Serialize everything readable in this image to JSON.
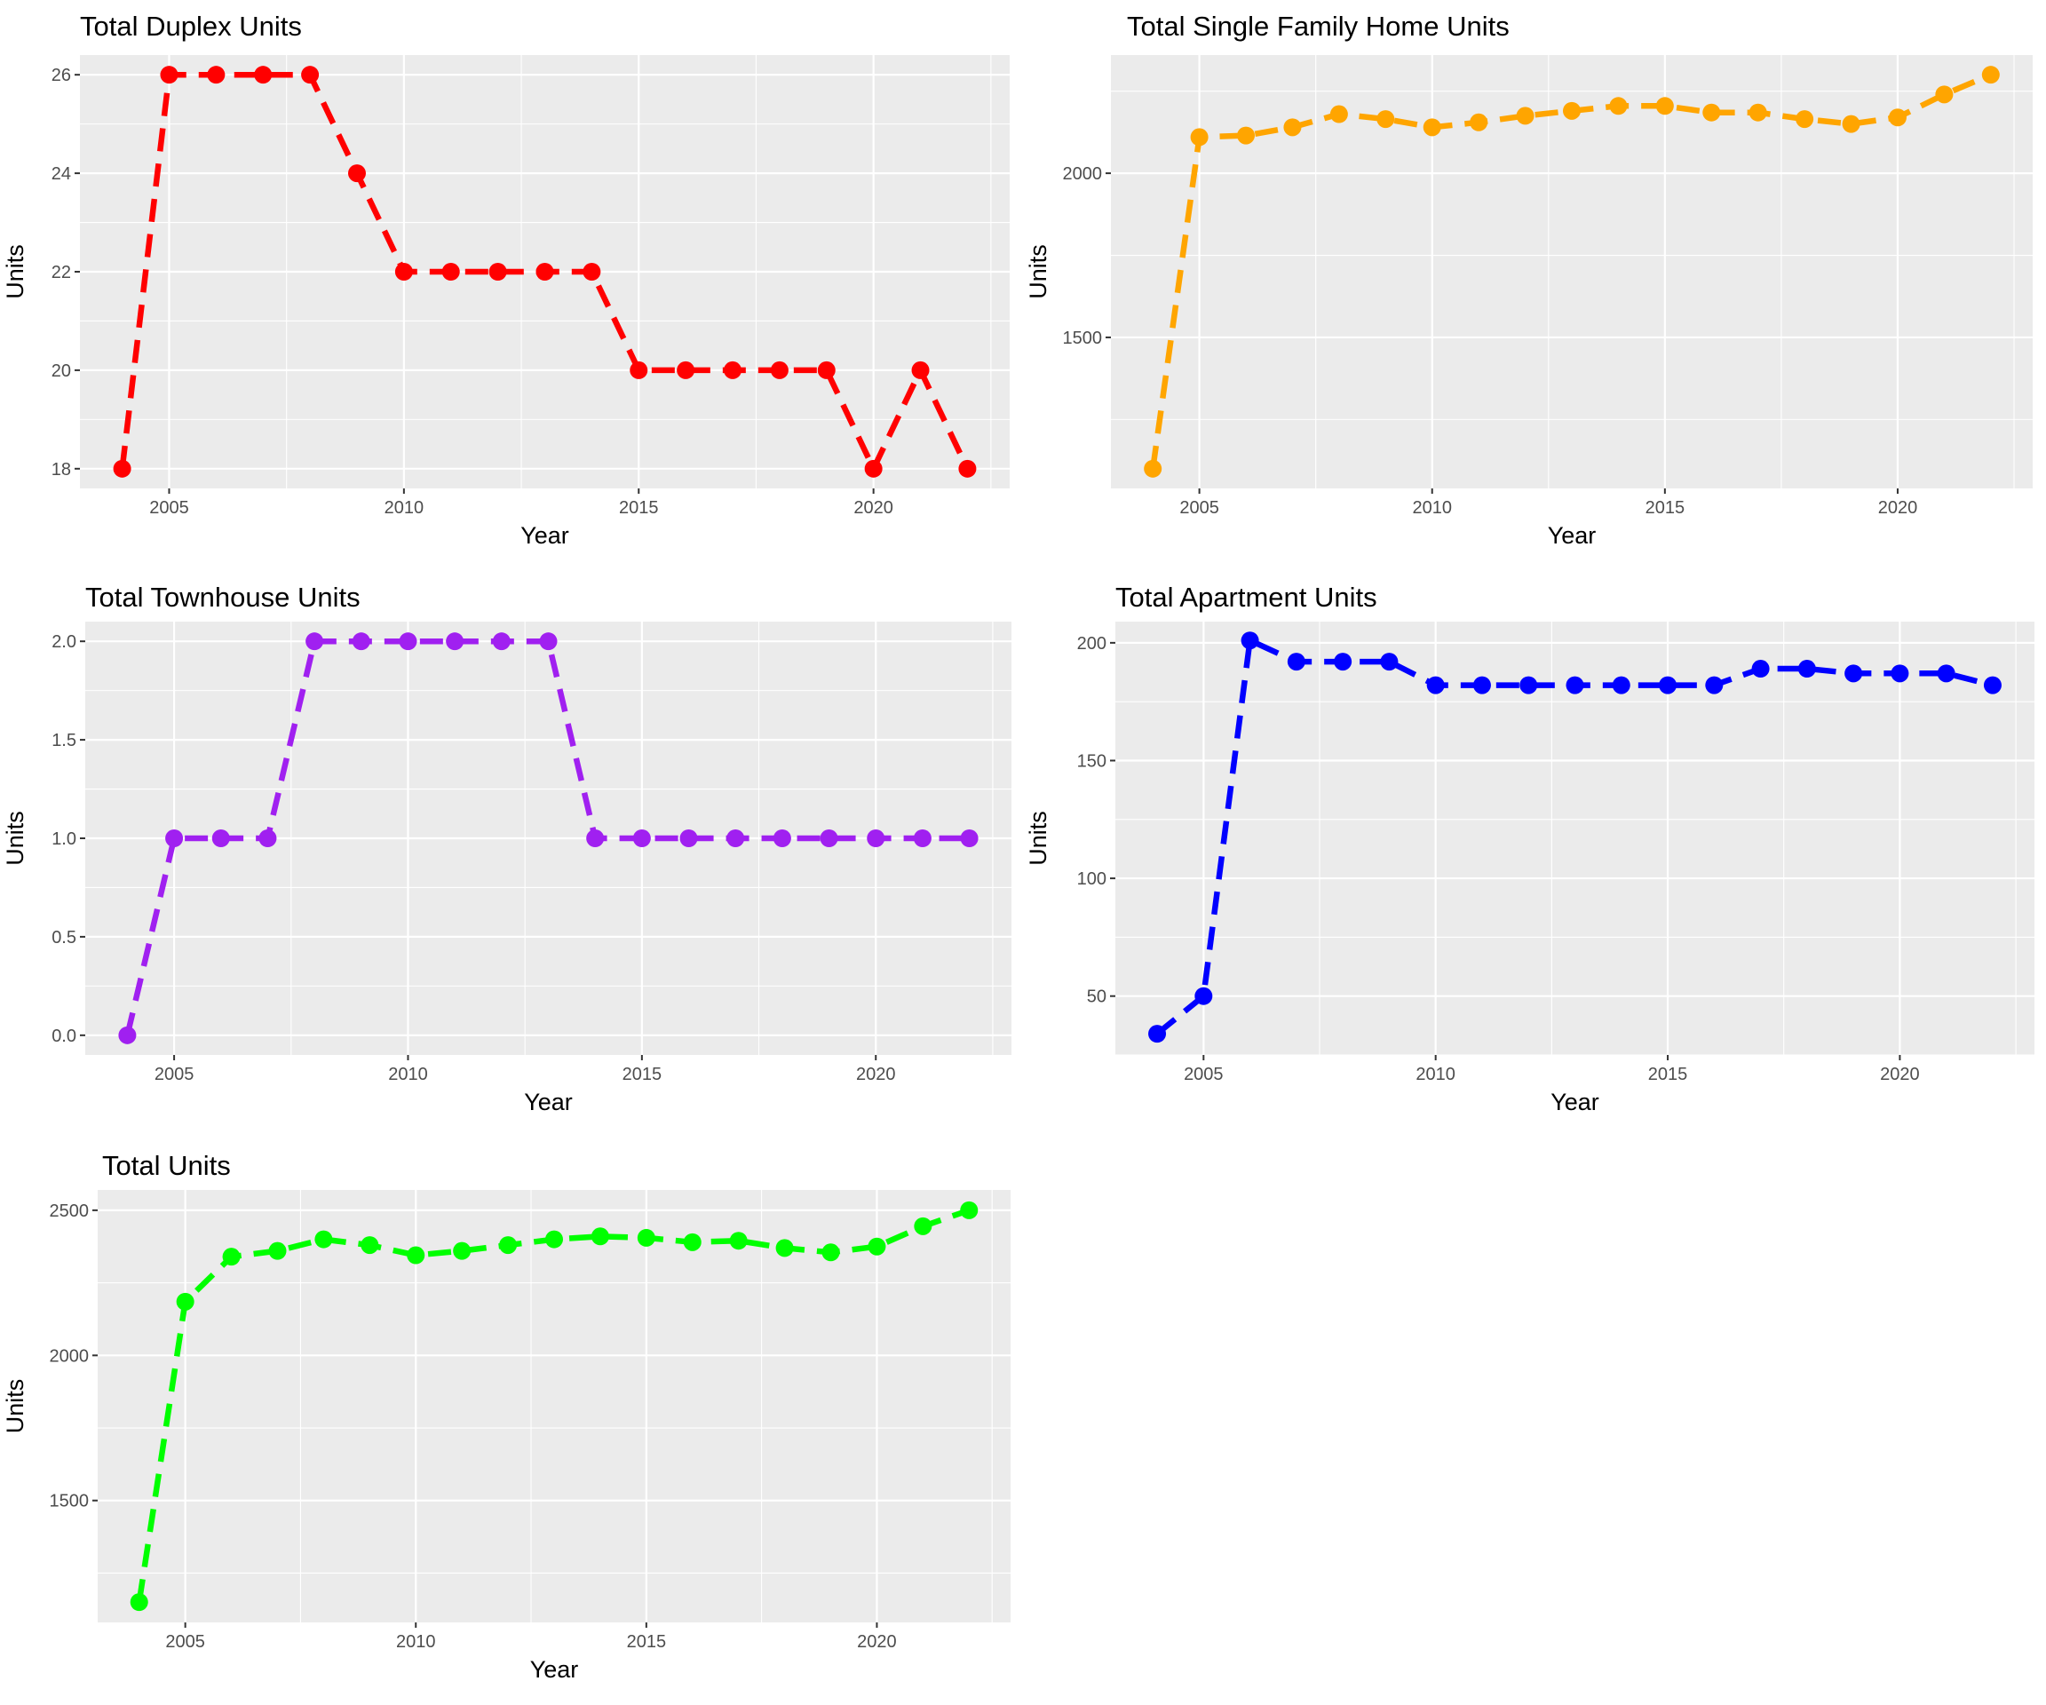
{
  "chart_data": [
    {
      "type": "line",
      "title": "Total Duplex Units",
      "xlabel": "Year",
      "ylabel": "Units",
      "color": "#ff0000",
      "line_style": "dashed",
      "grid": true,
      "x": [
        2004,
        2005,
        2006,
        2007,
        2008,
        2009,
        2010,
        2011,
        2012,
        2013,
        2014,
        2015,
        2016,
        2017,
        2018,
        2019,
        2020,
        2021,
        2022
      ],
      "series": [
        {
          "values": [
            18,
            26,
            26,
            26,
            26,
            24,
            22,
            22,
            22,
            22,
            22,
            20,
            20,
            20,
            20,
            20,
            18,
            20,
            18
          ]
        }
      ],
      "xlim": [
        2003.1,
        2022.9
      ],
      "ylim": [
        17.6,
        26.4
      ],
      "xticks": [
        2005,
        2010,
        2015,
        2020
      ],
      "yticks": [
        18,
        20,
        22,
        24,
        26
      ],
      "xtick_labels": [
        "2005",
        "2010",
        "2015",
        "2020"
      ],
      "ytick_labels": [
        "18",
        "20",
        "22",
        "24",
        "26"
      ]
    },
    {
      "type": "line",
      "title": "Total Single Family Home Units",
      "xlabel": "Year",
      "ylabel": "Units",
      "color": "#ffa500",
      "line_style": "dashed",
      "grid": true,
      "x": [
        2004,
        2005,
        2006,
        2007,
        2008,
        2009,
        2010,
        2011,
        2012,
        2013,
        2014,
        2015,
        2016,
        2017,
        2018,
        2019,
        2020,
        2021,
        2022
      ],
      "series": [
        {
          "values": [
            1100,
            2110,
            2115,
            2140,
            2180,
            2165,
            2140,
            2155,
            2175,
            2190,
            2205,
            2205,
            2185,
            2185,
            2165,
            2150,
            2170,
            2240,
            2300
          ]
        }
      ],
      "xlim": [
        2003.1,
        2022.9
      ],
      "ylim": [
        1040,
        2360
      ],
      "xticks": [
        2005,
        2010,
        2015,
        2020
      ],
      "yticks": [
        1500,
        2000
      ],
      "xtick_labels": [
        "2005",
        "2010",
        "2015",
        "2020"
      ],
      "ytick_labels": [
        "1500",
        "2000"
      ]
    },
    {
      "type": "line",
      "title": "Total Townhouse Units",
      "xlabel": "Year",
      "ylabel": "Units",
      "color": "#a020f0",
      "line_style": "dashed",
      "grid": true,
      "x": [
        2004,
        2005,
        2006,
        2007,
        2008,
        2009,
        2010,
        2011,
        2012,
        2013,
        2014,
        2015,
        2016,
        2017,
        2018,
        2019,
        2020,
        2021,
        2022
      ],
      "series": [
        {
          "values": [
            0,
            1,
            1,
            1,
            2,
            2,
            2,
            2,
            2,
            2,
            1,
            1,
            1,
            1,
            1,
            1,
            1,
            1,
            1
          ]
        }
      ],
      "xlim": [
        2003.1,
        2022.9
      ],
      "ylim": [
        -0.1,
        2.1
      ],
      "xticks": [
        2005,
        2010,
        2015,
        2020
      ],
      "yticks": [
        0,
        0.5,
        1,
        1.5,
        2
      ],
      "xtick_labels": [
        "2005",
        "2010",
        "2015",
        "2020"
      ],
      "ytick_labels": [
        "0.0",
        "0.5",
        "1.0",
        "1.5",
        "2.0"
      ]
    },
    {
      "type": "line",
      "title": "Total Apartment Units",
      "xlabel": "Year",
      "ylabel": "Units",
      "color": "#0000ff",
      "line_style": "dashed",
      "grid": true,
      "x": [
        2004,
        2005,
        2006,
        2007,
        2008,
        2009,
        2010,
        2011,
        2012,
        2013,
        2014,
        2015,
        2016,
        2017,
        2018,
        2019,
        2020,
        2021,
        2022
      ],
      "series": [
        {
          "values": [
            34,
            50,
            201,
            192,
            192,
            192,
            182,
            182,
            182,
            182,
            182,
            182,
            182,
            189,
            189,
            187,
            187,
            187,
            182
          ]
        }
      ],
      "xlim": [
        2003.1,
        2022.9
      ],
      "ylim": [
        25,
        209
      ],
      "xticks": [
        2005,
        2010,
        2015,
        2020
      ],
      "yticks": [
        50,
        100,
        150,
        200
      ],
      "xtick_labels": [
        "2005",
        "2010",
        "2015",
        "2020"
      ],
      "ytick_labels": [
        "50",
        "100",
        "150",
        "200"
      ]
    },
    {
      "type": "line",
      "title": "Total Units",
      "xlabel": "Year",
      "ylabel": "Units",
      "color": "#00ff00",
      "line_style": "dashed",
      "grid": true,
      "x": [
        2004,
        2005,
        2006,
        2007,
        2008,
        2009,
        2010,
        2011,
        2012,
        2013,
        2014,
        2015,
        2016,
        2017,
        2018,
        2019,
        2020,
        2021,
        2022
      ],
      "series": [
        {
          "values": [
            1150,
            2185,
            2340,
            2360,
            2400,
            2380,
            2345,
            2360,
            2380,
            2400,
            2410,
            2405,
            2390,
            2395,
            2370,
            2355,
            2375,
            2445,
            2500
          ]
        }
      ],
      "xlim": [
        2003.1,
        2022.9
      ],
      "ylim": [
        1080,
        2570
      ],
      "xticks": [
        2005,
        2010,
        2015,
        2020
      ],
      "yticks": [
        1500,
        2000,
        2500
      ],
      "xtick_labels": [
        "2005",
        "2010",
        "2015",
        "2020"
      ],
      "ytick_labels": [
        "1500",
        "2000",
        "2500"
      ]
    }
  ]
}
